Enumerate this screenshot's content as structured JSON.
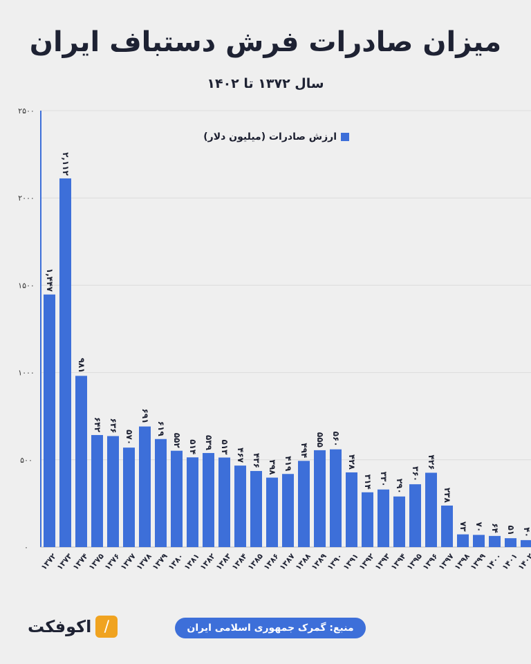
{
  "chart_data": {
    "type": "bar",
    "title": "میزان صادرات فرش دستباف ایران",
    "subtitle": "سال ۱۳۷۲ تا ۱۴۰۲",
    "xlabel": "",
    "ylabel": "",
    "ylim": [
      0,
      2500
    ],
    "y_ticks": [
      0,
      500,
      1000,
      1500,
      2000,
      2500
    ],
    "y_tick_labels": [
      "۰",
      "۵۰۰",
      "۱۰۰۰",
      "۱۵۰۰",
      "۲۰۰۰",
      "۲۵۰۰"
    ],
    "grid": true,
    "legend_position": "top-center",
    "categories": [
      "۱۳۷۲",
      "۱۳۷۳",
      "۱۳۷۴",
      "۱۳۷۵",
      "۱۳۷۶",
      "۱۳۷۷",
      "۱۳۷۸",
      "۱۳۷۹",
      "۱۳۸۰",
      "۱۳۸۱",
      "۱۳۸۲",
      "۱۳۸۳",
      "۱۳۸۴",
      "۱۳۸۵",
      "۱۳۸۶",
      "۱۳۸۷",
      "۱۳۸۸",
      "۱۳۸۹",
      "۱۳۹۰",
      "۱۳۹۱",
      "۱۳۹۲",
      "۱۳۹۳",
      "۱۳۹۴",
      "۱۳۹۵",
      "۱۳۹۶",
      "۱۳۹۷",
      "۱۳۹۸",
      "۱۳۹۹",
      "۱۴۰۰",
      "۱۴۰۱",
      "۱۴۰۲"
    ],
    "series": [
      {
        "name": "ارزش صادرات (میلیون دلار)",
        "color": "#3d6fd9",
        "values": [
          1447,
          2112,
          981,
          642,
          636,
          570,
          691,
          619,
          552,
          514,
          539,
          513,
          467,
          436,
          398,
          419,
          494,
          555,
          560,
          428,
          314,
          330,
          290,
          360,
          426,
          238,
          73,
          70,
          64,
          51,
          40
        ],
        "data_labels": [
          "۱,۴۴۷",
          "۲,۱۱۲",
          "۹۸۱",
          "۶۴۲",
          "۶۳۶",
          "۵۷۰",
          "۶۹۱",
          "۶۱۹",
          "۵۵۲",
          "۵۱۴",
          "۵۳۹",
          "۵۱۳",
          "۴۶۷",
          "۴۳۶",
          "۳۹۸",
          "۴۱۹",
          "۴۹۴",
          "۵۵۵",
          "۵۶۰",
          "۴۲۸",
          "۳۱۴",
          "۳۳۰",
          "۲۹۰",
          "۳۶۰",
          "۴۲۶",
          "۲۳۸",
          "۷۳",
          "۷۰",
          "۶۴",
          "۵۱",
          "۴۰"
        ]
      }
    ]
  },
  "footer": {
    "source": "منبع: گمرک جمهوری اسلامی ایران",
    "logo_text": "اکوفکت"
  }
}
